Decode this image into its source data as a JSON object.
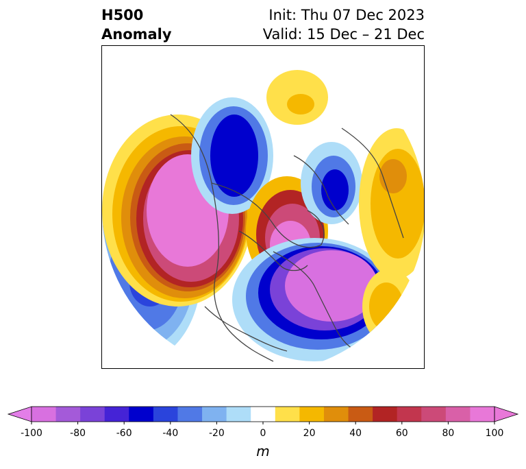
{
  "title": {
    "left_line1": "H500",
    "left_line2": "Anomaly",
    "right_line1": "Init: Thu 07 Dec 2023",
    "right_line2": "Valid: 15 Dec – 21 Dec"
  },
  "colorbar": {
    "unit": "m",
    "ticks": [
      "-100",
      "-80",
      "-60",
      "-40",
      "-20",
      "0",
      "20",
      "40",
      "60",
      "80",
      "100"
    ],
    "colors": [
      "#d870e0",
      "#a45ad9",
      "#7a42d8",
      "#4523d6",
      "#0000cd",
      "#2a44dc",
      "#5079e6",
      "#7fb2f0",
      "#aeddf8",
      "#ffffff",
      "#ffe04a",
      "#f5b800",
      "#e08e0b",
      "#c95b14",
      "#b22424",
      "#c2364e",
      "#cc4a78",
      "#d960a8",
      "#e878d8"
    ],
    "min_color": "#e37ee8",
    "max_color": "#e878d8"
  },
  "map": {
    "projection": "north-polar-stereographic",
    "field": "500 hPa geopotential height anomaly"
  }
}
